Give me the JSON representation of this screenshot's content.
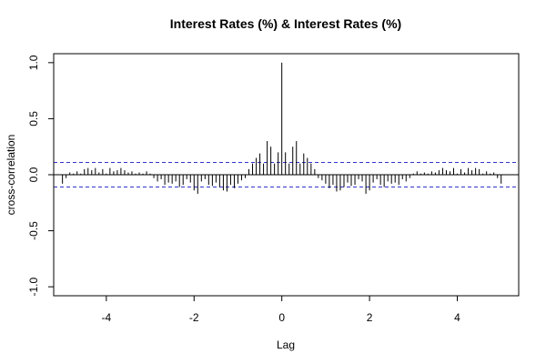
{
  "chart_data": {
    "type": "bar",
    "title": "Interest Rates (%) & Interest Rates (%)",
    "xlabel": "Lag",
    "ylabel": "cross-correlation",
    "xlim": [
      -5.2,
      5.4
    ],
    "ylim": [
      -1.08,
      1.08
    ],
    "x_ticks": [
      -4,
      -2,
      0,
      2,
      4
    ],
    "x_tick_labels": [
      "-4",
      "-2",
      "0",
      "2",
      "4"
    ],
    "y_ticks": [
      -1.0,
      -0.5,
      0.0,
      0.5,
      1.0
    ],
    "y_tick_labels": [
      "-1.0",
      "-0.5",
      "0.0",
      "0.5",
      "1.0"
    ],
    "confidence_bound": 0.11,
    "colors": {
      "bars": "#000000",
      "zero_line": "#000000",
      "confidence": "#3333cc",
      "frame": "#000000"
    },
    "x": [
      -5.0,
      -4.917,
      -4.833,
      -4.75,
      -4.667,
      -4.583,
      -4.5,
      -4.417,
      -4.333,
      -4.25,
      -4.167,
      -4.083,
      -4.0,
      -3.917,
      -3.833,
      -3.75,
      -3.667,
      -3.583,
      -3.5,
      -3.417,
      -3.333,
      -3.25,
      -3.167,
      -3.083,
      -3.0,
      -2.917,
      -2.833,
      -2.75,
      -2.667,
      -2.583,
      -2.5,
      -2.417,
      -2.333,
      -2.25,
      -2.167,
      -2.083,
      -2.0,
      -1.917,
      -1.833,
      -1.75,
      -1.667,
      -1.583,
      -1.5,
      -1.417,
      -1.333,
      -1.25,
      -1.167,
      -1.083,
      -1.0,
      -0.917,
      -0.833,
      -0.75,
      -0.667,
      -0.583,
      -0.5,
      -0.417,
      -0.333,
      -0.25,
      -0.167,
      -0.083,
      0.0,
      0.083,
      0.167,
      0.25,
      0.333,
      0.417,
      0.5,
      0.583,
      0.667,
      0.75,
      0.833,
      0.917,
      1.0,
      1.083,
      1.167,
      1.25,
      1.333,
      1.417,
      1.5,
      1.583,
      1.667,
      1.75,
      1.833,
      1.917,
      2.0,
      2.083,
      2.167,
      2.25,
      2.333,
      2.417,
      2.5,
      2.583,
      2.667,
      2.75,
      2.833,
      2.917,
      3.0,
      3.083,
      3.167,
      3.25,
      3.333,
      3.417,
      3.5,
      3.583,
      3.667,
      3.75,
      3.833,
      3.917,
      4.0,
      4.083,
      4.167,
      4.25,
      4.333,
      4.417,
      4.5,
      4.583,
      4.667,
      4.75,
      4.833,
      4.917,
      5.0
    ],
    "values": [
      -0.08,
      -0.03,
      0.02,
      0.01,
      0.03,
      0.01,
      0.05,
      0.06,
      0.04,
      0.06,
      0.02,
      0.05,
      0.01,
      0.06,
      0.03,
      0.04,
      0.06,
      0.04,
      0.02,
      0.03,
      0.01,
      0.02,
      0.01,
      0.03,
      0.01,
      -0.03,
      -0.06,
      -0.04,
      -0.09,
      -0.07,
      -0.08,
      -0.06,
      -0.11,
      -0.09,
      -0.04,
      -0.07,
      -0.14,
      -0.17,
      -0.06,
      -0.04,
      -0.09,
      -0.1,
      -0.07,
      -0.11,
      -0.14,
      -0.15,
      -0.09,
      -0.12,
      -0.08,
      -0.05,
      -0.03,
      0.05,
      0.1,
      0.15,
      0.19,
      0.1,
      0.3,
      0.25,
      0.1,
      0.2,
      1.0,
      0.2,
      0.1,
      0.25,
      0.3,
      0.1,
      0.19,
      0.15,
      0.1,
      0.05,
      -0.03,
      -0.05,
      -0.08,
      -0.12,
      -0.09,
      -0.15,
      -0.14,
      -0.11,
      -0.07,
      -0.1,
      -0.09,
      -0.04,
      -0.06,
      -0.17,
      -0.14,
      -0.07,
      -0.04,
      -0.09,
      -0.11,
      -0.06,
      -0.08,
      -0.07,
      -0.09,
      -0.04,
      -0.06,
      -0.03,
      0.01,
      0.03,
      0.01,
      0.02,
      0.01,
      0.03,
      0.02,
      0.04,
      0.06,
      0.04,
      0.03,
      0.06,
      0.01,
      0.05,
      0.02,
      0.06,
      0.04,
      0.06,
      0.05,
      0.01,
      0.03,
      0.01,
      0.02,
      -0.03,
      -0.08
    ]
  }
}
